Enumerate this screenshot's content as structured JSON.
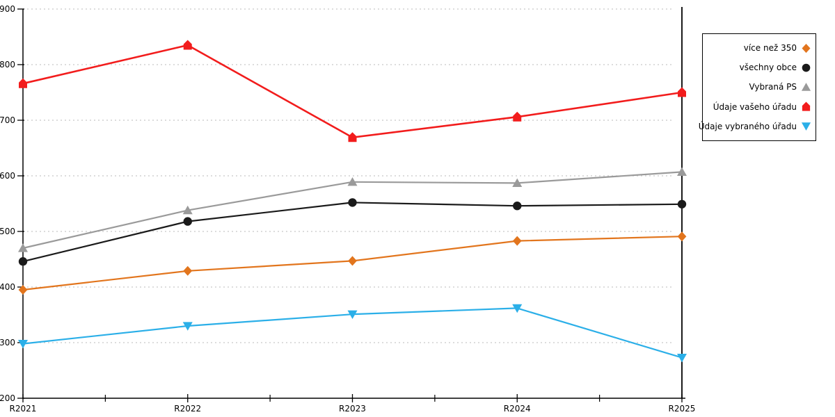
{
  "chart_data": {
    "type": "line",
    "title": "",
    "xlabel": "",
    "ylabel": "",
    "categories": [
      "R2021",
      "R2022",
      "R2023",
      "R2024",
      "R2025"
    ],
    "series": [
      {
        "name": "více než 350",
        "color": "#e2751d",
        "marker": "diamond",
        "line_width": 2.2,
        "values": [
          395,
          429,
          447,
          483,
          491
        ]
      },
      {
        "name": "všechny obce",
        "color": "#1a1a1a",
        "marker": "circle",
        "line_width": 2.2,
        "values": [
          446,
          518,
          552,
          546,
          549
        ]
      },
      {
        "name": "Vybraná PS",
        "color": "#9a9a9a",
        "marker": "triangle-up",
        "line_width": 2.2,
        "values": [
          470,
          538,
          589,
          587,
          607
        ]
      },
      {
        "name": "Údaje vašeho úřadu",
        "color": "#f21c1c",
        "marker": "house",
        "line_width": 2.6,
        "values": [
          766,
          835,
          669,
          706,
          750
        ]
      },
      {
        "name": "Údaje vybraného úřadu",
        "color": "#2bafe8",
        "marker": "triangle-down",
        "line_width": 2.2,
        "values": [
          298,
          330,
          351,
          362,
          273
        ]
      }
    ],
    "ylim": [
      200,
      900
    ],
    "yticks": [
      200,
      300,
      400,
      500,
      600,
      700,
      800,
      900
    ],
    "grid": "horizontal-dashed",
    "grid_color": "#c8c8c8",
    "axis_color": "#000000",
    "legend_position": "outside-right",
    "legend_entries": [
      "více než 350",
      "všechny obce",
      "Vybraná PS",
      "Údaje vašeho úřadu",
      "Údaje vybraného úřadu"
    ]
  }
}
